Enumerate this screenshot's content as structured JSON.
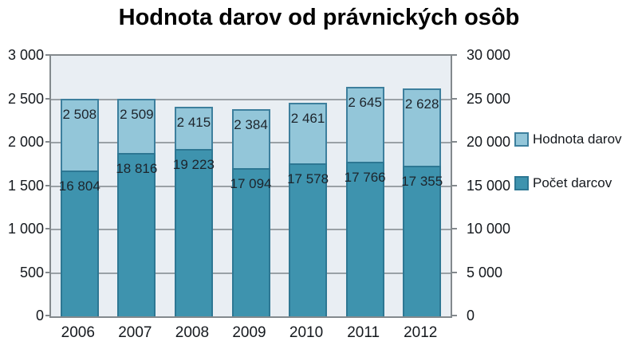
{
  "chart_data": {
    "type": "bar",
    "title": "Hodnota darov od právnických osôb",
    "categories": [
      "2006",
      "2007",
      "2008",
      "2009",
      "2010",
      "2011",
      "2012"
    ],
    "series": [
      {
        "name": "Hodnota darov",
        "axis": "left",
        "values": [
          2508,
          2509,
          2415,
          2384,
          2461,
          2645,
          2628
        ],
        "fill": "#93c6d9",
        "border": "#3d7f9d"
      },
      {
        "name": "Počet darcov",
        "axis": "right",
        "values": [
          16804,
          18816,
          19223,
          17094,
          17578,
          17766,
          17355
        ],
        "fill": "#3e93ae",
        "border": "#2d7793"
      }
    ],
    "left_axis": {
      "min": 0,
      "max": 3000,
      "step": 500,
      "labels": [
        "0",
        "500",
        "1 000",
        "1 500",
        "2 000",
        "2 500",
        "3 000"
      ]
    },
    "right_axis": {
      "min": 0,
      "max": 30000,
      "step": 5000,
      "labels": [
        "0",
        "5 000",
        "10 000",
        "15 000",
        "20 000",
        "25 000",
        "30 000"
      ]
    },
    "grid": true,
    "legend_position": "right",
    "plot_background": "#e9eef3",
    "grid_color": "#9aa1a6",
    "label_color": "#1d242b"
  }
}
